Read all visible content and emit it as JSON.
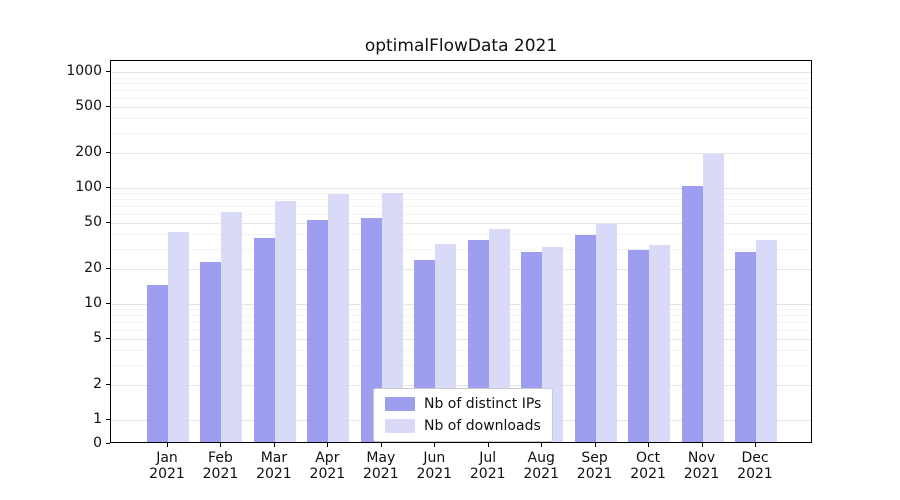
{
  "chart_data": {
    "type": "bar",
    "title": "optimalFlowData 2021",
    "xlabel": "",
    "ylabel": "",
    "year": "2021",
    "categories": [
      "Jan",
      "Feb",
      "Mar",
      "Apr",
      "May",
      "Jun",
      "Jul",
      "Aug",
      "Sep",
      "Oct",
      "Nov",
      "Dec"
    ],
    "series": [
      {
        "name": "Nb of distinct IPs",
        "color": "#9e9ef0",
        "values": [
          14,
          22,
          36,
          51,
          53,
          23,
          34,
          27,
          38,
          28,
          101,
          27
        ]
      },
      {
        "name": "Nb of downloads",
        "color": "#d9d9f8",
        "values": [
          40,
          60,
          75,
          85,
          88,
          32,
          43,
          30,
          47,
          31,
          190,
          34
        ]
      }
    ],
    "yscale": "symlog",
    "yticks": [
      0,
      1,
      2,
      5,
      10,
      20,
      50,
      100,
      200,
      500,
      1000
    ],
    "ylim": [
      0,
      1250
    ],
    "grid": "horizontal major+minor",
    "legend_position": "lower center"
  }
}
